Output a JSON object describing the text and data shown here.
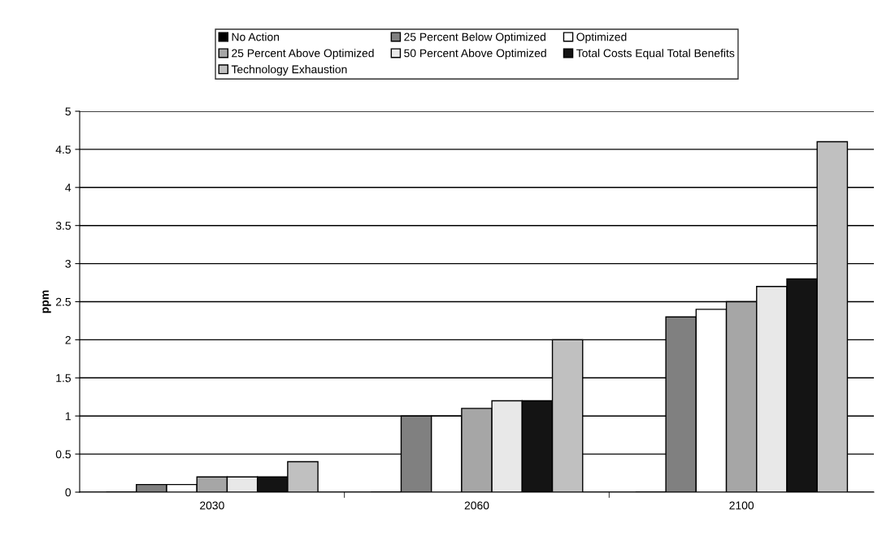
{
  "chart_data": {
    "type": "bar",
    "ylabel": "ppm",
    "categories": [
      "2030",
      "2060",
      "2100"
    ],
    "series": [
      {
        "name": "No Action",
        "color": "#000000",
        "values": [
          0,
          0,
          0
        ]
      },
      {
        "name": "25 Percent Below Optimized",
        "color": "#808080",
        "values": [
          0.1,
          1,
          2.3
        ]
      },
      {
        "name": "Optimized",
        "color": "#ffffff",
        "values": [
          0.1,
          1,
          2.4
        ]
      },
      {
        "name": "25 Percent Above Optimized",
        "color": "#a6a6a6",
        "values": [
          0.2,
          1.1,
          2.5
        ]
      },
      {
        "name": "50 Percent Above Optimized",
        "color": "#e8e8e8",
        "values": [
          0.2,
          1.2,
          2.7
        ]
      },
      {
        "name": "Total Costs Equal Total Benefits",
        "color": "#141414",
        "values": [
          0.2,
          1.2,
          2.8
        ]
      },
      {
        "name": "Technology Exhaustion",
        "color": "#c0c0c0",
        "values": [
          0.4,
          2,
          4.6
        ]
      }
    ],
    "ylim": [
      0,
      5
    ],
    "yticks": [
      0,
      0.5,
      1,
      1.5,
      2,
      2.5,
      3,
      3.5,
      4,
      4.5,
      5
    ],
    "grid": "y",
    "legend": "top"
  }
}
